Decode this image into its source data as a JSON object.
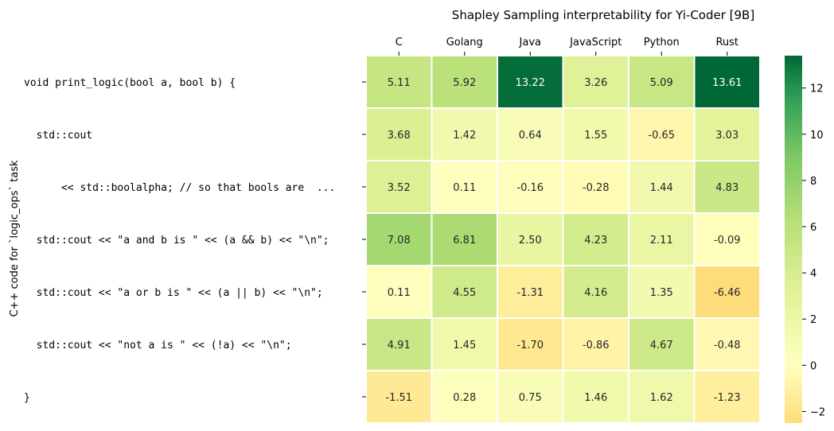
{
  "chart_data": {
    "type": "heatmap",
    "title": "Shapley Sampling interpretability for Yi-Coder [9B]",
    "xlabel": "",
    "ylabel": "C++ code for `logic_ops` task",
    "x_position": "top",
    "columns": [
      "C",
      "Golang",
      "Java",
      "JavaScript",
      "Python",
      "Rust"
    ],
    "rows": [
      "void print_logic(bool a, bool b) {",
      "  std::cout",
      "      << std::boolalpha; // so that bools are  ...",
      "  std::cout << \"a and b is \" << (a && b) << \"\\n\";",
      "  std::cout << \"a or b is \" << (a || b) << \"\\n\";",
      "  std::cout << \"not a is \" << (!a) << \"\\n\";",
      "}"
    ],
    "values": [
      [
        5.11,
        5.92,
        13.22,
        3.26,
        5.09,
        13.61
      ],
      [
        3.68,
        1.42,
        0.64,
        1.55,
        -0.65,
        3.03
      ],
      [
        3.52,
        0.11,
        -0.16,
        -0.28,
        1.44,
        4.83
      ],
      [
        7.08,
        6.81,
        2.5,
        4.23,
        2.11,
        -0.09
      ],
      [
        0.11,
        4.55,
        -1.31,
        4.16,
        1.35,
        -6.46
      ],
      [
        4.91,
        1.45,
        -1.7,
        -0.86,
        4.67,
        -0.48
      ],
      [
        -1.51,
        0.28,
        0.75,
        1.46,
        1.62,
        -1.23
      ]
    ],
    "value_format": "2 decimals",
    "colormap": "RdYlGn centered at 0",
    "colorbar": {
      "range": [
        -2.5,
        13.4
      ],
      "ticks": [
        -2,
        0,
        2,
        4,
        6,
        8,
        10,
        12
      ],
      "tick_labels": [
        "−2",
        "0",
        "2",
        "4",
        "6",
        "8",
        "10",
        "12"
      ],
      "placement": "right"
    },
    "grid": false
  }
}
